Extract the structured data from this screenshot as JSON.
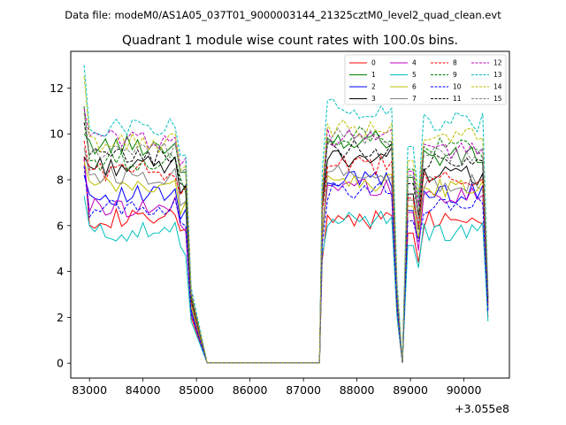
{
  "chart_data": {
    "type": "line",
    "suptitle": "Data file: modeM0/AS1A05_037T01_9000003144_21325cztM0_level2_quad_clean.evt",
    "title": "Quadrant 1 module wise count rates with 100.0s bins.",
    "xlabel": "",
    "ylabel": "",
    "x_offset_label": "+3.055e8",
    "xlim": [
      82650,
      90850
    ],
    "ylim": [
      -0.65,
      13.6
    ],
    "x_ticks": [
      83000,
      84000,
      85000,
      86000,
      87000,
      88000,
      89000,
      90000
    ],
    "x_tick_labels": [
      "83000",
      "84000",
      "85000",
      "86000",
      "87000",
      "88000",
      "89000",
      "90000"
    ],
    "y_ticks": [
      0,
      2,
      4,
      6,
      8,
      10,
      12
    ],
    "y_tick_labels": [
      "0",
      "2",
      "4",
      "6",
      "8",
      "10",
      "12"
    ],
    "legend_position": "upper right",
    "segments": [
      {
        "start": 82900,
        "n": 21,
        "step": 100
      },
      {
        "start": 85200,
        "n": 22,
        "step": 100
      },
      {
        "start": 87350,
        "n": 15,
        "step": 100
      },
      {
        "start": 88850,
        "n": 3,
        "step": 100
      },
      {
        "start": 89150,
        "n": 14,
        "step": 100
      }
    ],
    "series": [
      {
        "name": "0",
        "color": "#ff0000",
        "dash": false,
        "levels": [
          9.0,
          6.3,
          6.3,
          6.3
        ]
      },
      {
        "name": "1",
        "color": "#008000",
        "dash": false,
        "levels": [
          10.0,
          9.5,
          9.8,
          9.0
        ]
      },
      {
        "name": "2",
        "color": "#0000ff",
        "dash": false,
        "levels": [
          8.2,
          7.3,
          8.0,
          7.4
        ]
      },
      {
        "name": "3",
        "color": "#000000",
        "dash": false,
        "levels": [
          9.0,
          8.6,
          9.0,
          8.2
        ]
      },
      {
        "name": "4",
        "color": "#bf00bf",
        "dash": false,
        "levels": [
          8.9,
          6.8,
          7.7,
          7.3
        ]
      },
      {
        "name": "5",
        "color": "#00bfbf",
        "dash": false,
        "levels": [
          7.3,
          5.7,
          6.3,
          5.7
        ]
      },
      {
        "name": "6",
        "color": "#bfbf00",
        "dash": false,
        "levels": [
          8.8,
          7.7,
          7.9,
          7.6
        ]
      },
      {
        "name": "7",
        "color": "#808080",
        "dash": false,
        "levels": [
          9.4,
          8.2,
          8.3,
          7.9
        ]
      },
      {
        "name": "8",
        "color": "#ff0000",
        "dash": true,
        "levels": [
          9.7,
          8.4,
          8.6,
          8.0
        ]
      },
      {
        "name": "9",
        "color": "#008000",
        "dash": true,
        "levels": [
          11.2,
          8.8,
          9.9,
          9.4
        ]
      },
      {
        "name": "10",
        "color": "#0000ff",
        "dash": true,
        "levels": [
          8.6,
          6.8,
          7.5,
          6.9
        ]
      },
      {
        "name": "11",
        "color": "#000000",
        "dash": true,
        "levels": [
          10.5,
          9.0,
          9.3,
          8.7
        ]
      },
      {
        "name": "12",
        "color": "#bf00bf",
        "dash": true,
        "levels": [
          11.1,
          9.8,
          9.8,
          9.3
        ]
      },
      {
        "name": "13",
        "color": "#00bfbf",
        "dash": true,
        "levels": [
          13.0,
          10.3,
          11.1,
          10.5
        ]
      },
      {
        "name": "14",
        "color": "#bfbf00",
        "dash": true,
        "levels": [
          12.5,
          9.6,
          10.2,
          9.8
        ]
      },
      {
        "name": "15",
        "color": "#808080",
        "dash": true,
        "levels": [
          10.9,
          9.2,
          9.8,
          9.1
        ]
      }
    ]
  }
}
